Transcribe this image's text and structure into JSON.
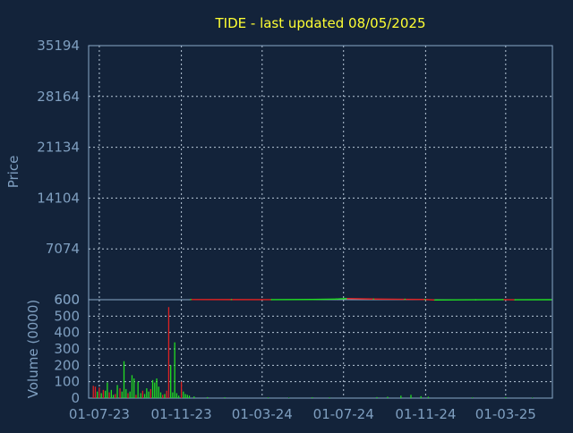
{
  "colors": {
    "background": "#13233a",
    "title": "#ffff33",
    "axis_text": "#7f9fc0",
    "frame": "#8aa8c8",
    "grid": "#b8c8d8",
    "up": "#22dd22",
    "down": "#dd2222"
  },
  "chart_data": [
    {
      "type": "line",
      "title": "TIDE - last updated 08/05/2025",
      "ylabel": "Price",
      "ylim": [
        600,
        35194
      ],
      "yticks": [
        "35194",
        "28164",
        "21134",
        "14104",
        "7074",
        "600"
      ],
      "x_ticks": [
        "01-07-23",
        "01-11-23",
        "01-03-24",
        "01-07-24",
        "01-11-24",
        "01-03-25"
      ],
      "series": [
        {
          "x": [
            "2023-11-15",
            "2024-01-15",
            "2024-03-15",
            "2024-05-15",
            "2024-06-20",
            "2024-07-05",
            "2024-08-15",
            "2024-10-01",
            "2024-10-31",
            "2024-11-15",
            "2025-01-15",
            "2025-02-25",
            "2025-03-15",
            "2025-05-08"
          ],
          "y": [
            620,
            615,
            610,
            630,
            680,
            760,
            690,
            650,
            630,
            560,
            590,
            610,
            590,
            600
          ]
        }
      ]
    },
    {
      "type": "bar",
      "ylabel": "Volume (0000)",
      "ylim": [
        0,
        600
      ],
      "yticks": [
        "600",
        "500",
        "400",
        "300",
        "200",
        "100",
        "0"
      ],
      "x_ticks": [
        "01-07-23",
        "01-11-23",
        "01-03-24",
        "01-07-24",
        "01-11-24",
        "01-03-25"
      ],
      "x": [
        "2023-06-22",
        "2023-06-25",
        "2023-06-28",
        "2023-07-01",
        "2023-07-04",
        "2023-07-07",
        "2023-07-10",
        "2023-07-13",
        "2023-07-16",
        "2023-07-19",
        "2023-07-22",
        "2023-07-25",
        "2023-07-28",
        "2023-08-01",
        "2023-08-04",
        "2023-08-07",
        "2023-08-10",
        "2023-08-13",
        "2023-08-16",
        "2023-08-19",
        "2023-08-22",
        "2023-08-25",
        "2023-08-28",
        "2023-09-01",
        "2023-09-04",
        "2023-09-07",
        "2023-09-10",
        "2023-09-13",
        "2023-09-16",
        "2023-09-19",
        "2023-09-22",
        "2023-09-25",
        "2023-09-28",
        "2023-10-01",
        "2023-10-04",
        "2023-10-07",
        "2023-10-10",
        "2023-10-13",
        "2023-10-16",
        "2023-10-19",
        "2023-10-22",
        "2023-10-25",
        "2023-10-28",
        "2023-11-01",
        "2023-11-04",
        "2023-11-07",
        "2023-11-10",
        "2023-11-13",
        "2023-11-20",
        "2023-12-10",
        "2024-01-05",
        "2024-03-10",
        "2024-04-10",
        "2024-05-15",
        "2024-06-10",
        "2024-08-20",
        "2024-09-05",
        "2024-09-25",
        "2024-10-10",
        "2024-10-25",
        "2024-11-05",
        "2025-01-10",
        "2025-03-01",
        "2025-04-10"
      ],
      "values": [
        75,
        70,
        40,
        65,
        30,
        50,
        45,
        95,
        35,
        50,
        20,
        25,
        80,
        60,
        40,
        225,
        55,
        30,
        40,
        140,
        120,
        20,
        100,
        30,
        45,
        25,
        60,
        40,
        55,
        110,
        95,
        120,
        70,
        35,
        20,
        25,
        45,
        555,
        200,
        35,
        340,
        30,
        15,
        100,
        40,
        25,
        20,
        15,
        10,
        6,
        5,
        4,
        3,
        5,
        4,
        6,
        8,
        15,
        20,
        12,
        8,
        4,
        5,
        3
      ],
      "direction": [
        "down",
        "down",
        "up",
        "down",
        "up",
        "down",
        "up",
        "up",
        "down",
        "up",
        "up",
        "down",
        "up",
        "down",
        "up",
        "up",
        "up",
        "down",
        "up",
        "up",
        "up",
        "down",
        "up",
        "up",
        "down",
        "up",
        "up",
        "up",
        "down",
        "up",
        "up",
        "up",
        "up",
        "up",
        "down",
        "up",
        "down",
        "down",
        "up",
        "up",
        "up",
        "up",
        "up",
        "down",
        "up",
        "up",
        "up",
        "up",
        "up",
        "up",
        "up",
        "up",
        "up",
        "up",
        "up",
        "up",
        "up",
        "up",
        "up",
        "up",
        "up",
        "up",
        "up",
        "up"
      ]
    }
  ]
}
